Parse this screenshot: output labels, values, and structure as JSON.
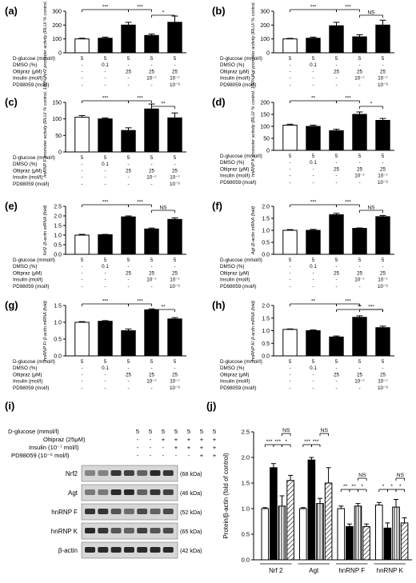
{
  "chart_data": [
    {
      "panel": "(a)",
      "type": "bar",
      "ylabel": "Nrf2 promoter activity (RLU/ % control, 100%)",
      "yticks": [
        "0",
        "100",
        "200",
        "300"
      ],
      "ylim": [
        0,
        300
      ],
      "values": [
        100,
        105,
        200,
        125,
        220
      ],
      "errors": [
        5,
        8,
        20,
        10,
        45
      ],
      "fill": [
        "white",
        "black",
        "black",
        "black",
        "black"
      ],
      "sig": [
        {
          "from": 0,
          "to": 2,
          "label": "***"
        },
        {
          "from": 2,
          "to": 3,
          "label": "***"
        },
        {
          "from": 3,
          "to": 4,
          "label": "*"
        }
      ],
      "treatments": [
        {
          "label": "D-glucose (mmol/l)",
          "values": [
            "5",
            "5",
            "5",
            "5",
            "5"
          ]
        },
        {
          "label": "DMSO (%)",
          "values": [
            "-",
            "0.1",
            "-",
            "-",
            "-"
          ]
        },
        {
          "label": "Oltipraz (μM)",
          "values": [
            "-",
            "-",
            "25",
            "25",
            "25"
          ]
        },
        {
          "label": "Insulin (mol/l)",
          "values": [
            "-",
            "-",
            "-",
            "10⁻⁷",
            "10⁻⁷"
          ]
        },
        {
          "label": "PD98059 (mol/l)",
          "values": [
            "-",
            "-",
            "-",
            "-",
            "10⁻⁶"
          ]
        }
      ]
    },
    {
      "panel": "(b)",
      "type": "bar",
      "ylabel": "Agt promoter activity (RLU/ % control, 100%)",
      "yticks": [
        "0",
        "100",
        "200",
        "300"
      ],
      "ylim": [
        0,
        300
      ],
      "values": [
        100,
        105,
        195,
        115,
        200
      ],
      "errors": [
        4,
        8,
        25,
        15,
        35
      ],
      "fill": [
        "white",
        "black",
        "black",
        "black",
        "black"
      ],
      "sig": [
        {
          "from": 0,
          "to": 2,
          "label": "***"
        },
        {
          "from": 2,
          "to": 3,
          "label": "***"
        },
        {
          "from": 3,
          "to": 4,
          "label": "NS"
        }
      ],
      "treatments": [
        {
          "label": "D-glucose (mmol/l)",
          "values": [
            "5",
            "5",
            "5",
            "5",
            "5"
          ]
        },
        {
          "label": "DMSO (%)",
          "values": [
            "-",
            "0.1",
            "-",
            "-",
            "-"
          ]
        },
        {
          "label": "Oltipraz (μM)",
          "values": [
            "-",
            "-",
            "25",
            "25",
            "25"
          ]
        },
        {
          "label": "Insulin (mol/l)",
          "values": [
            "-",
            "-",
            "-",
            "10⁻⁷",
            "10⁻⁷"
          ]
        },
        {
          "label": "PD98059 (mol/l)",
          "values": [
            "-",
            "-",
            "-",
            "-",
            "10⁻⁶"
          ]
        }
      ]
    },
    {
      "panel": "(c)",
      "type": "bar",
      "ylabel": "hnRNP F promoter activity (RLU/ % control, 100%)",
      "yticks": [
        "0",
        "50",
        "100",
        "150"
      ],
      "ylim": [
        0,
        150
      ],
      "values": [
        105,
        100,
        65,
        130,
        103
      ],
      "errors": [
        5,
        3,
        8,
        15,
        15
      ],
      "fill": [
        "white",
        "black",
        "black",
        "black",
        "black"
      ],
      "sig": [
        {
          "from": 0,
          "to": 2,
          "label": "***"
        },
        {
          "from": 2,
          "to": 3,
          "label": "***"
        },
        {
          "from": 3,
          "to": 4,
          "label": "**"
        }
      ],
      "treatments": [
        {
          "label": "D-glucose (mmol/l)",
          "values": [
            "5",
            "5",
            "5",
            "5",
            "5"
          ]
        },
        {
          "label": "DMSO (%)",
          "values": [
            "-",
            "0.1",
            "-",
            "-",
            "-"
          ]
        },
        {
          "label": "Oltipraz (μM)",
          "values": [
            "-",
            "-",
            "25",
            "25",
            "25"
          ]
        },
        {
          "label": "Insulin (mol/l)",
          "values": [
            "-",
            "-",
            "-",
            "10⁻⁷",
            "10⁻⁷"
          ]
        },
        {
          "label": "PD98059 (mol/l)",
          "values": [
            "-",
            "-",
            "-",
            "-",
            "10⁻⁶"
          ]
        }
      ]
    },
    {
      "panel": "(d)",
      "type": "bar",
      "ylabel": "hnRNP K promoter activity (RLU/ % control, 100%)",
      "yticks": [
        "0",
        "50",
        "100",
        "150",
        "200"
      ],
      "ylim": [
        0,
        200
      ],
      "values": [
        105,
        100,
        82,
        150,
        125
      ],
      "errors": [
        4,
        5,
        6,
        10,
        8
      ],
      "fill": [
        "white",
        "black",
        "black",
        "black",
        "black"
      ],
      "sig": [
        {
          "from": 0,
          "to": 2,
          "label": "**"
        },
        {
          "from": 2,
          "to": 3,
          "label": "***"
        },
        {
          "from": 3,
          "to": 4,
          "label": "*"
        }
      ],
      "treatments": [
        {
          "label": "D-glucose (mmol/l)",
          "values": [
            "5",
            "5",
            "5",
            "5",
            "5"
          ]
        },
        {
          "label": "DMSO (%)",
          "values": [
            "-",
            "0.1",
            "-",
            "-",
            "-"
          ]
        },
        {
          "label": "Oltipraz (μM)",
          "values": [
            "-",
            "-",
            "25",
            "25",
            "25"
          ]
        },
        {
          "label": "Insulin (mol/l)",
          "values": [
            "-",
            "-",
            "-",
            "10⁻⁷",
            "10⁻⁷"
          ]
        },
        {
          "label": "PD98059 (mol/l)",
          "values": [
            "-",
            "-",
            "-",
            "-",
            "10⁻⁶"
          ]
        }
      ]
    },
    {
      "panel": "(e)",
      "type": "bar",
      "ylabel": "Nrf2 /β-actin mRNA (fold)",
      "yticks": [
        "0.0",
        "0.5",
        "1.0",
        "1.5",
        "2.0",
        "2.5"
      ],
      "ylim": [
        0,
        2.5
      ],
      "values": [
        1.0,
        1.02,
        1.95,
        1.32,
        1.82
      ],
      "errors": [
        0.04,
        0.02,
        0.05,
        0.05,
        0.08
      ],
      "fill": [
        "white",
        "black",
        "black",
        "black",
        "black"
      ],
      "sig": [
        {
          "from": 0,
          "to": 2,
          "label": "***"
        },
        {
          "from": 2,
          "to": 3,
          "label": "***"
        },
        {
          "from": 3,
          "to": 4,
          "label": "NS"
        }
      ],
      "treatments": [
        {
          "label": "D-glucose (mmol/l)",
          "values": [
            "5",
            "5",
            "5",
            "5",
            "5"
          ]
        },
        {
          "label": "DMSO (%)",
          "values": [
            "-",
            "0.1",
            "-",
            "-",
            "-"
          ]
        },
        {
          "label": "Oltipraz (μM)",
          "values": [
            "-",
            "-",
            "25",
            "25",
            "25"
          ]
        },
        {
          "label": "Insulin (mol/l)",
          "values": [
            "-",
            "-",
            "-",
            "10⁻⁷",
            "10⁻⁷"
          ]
        },
        {
          "label": "PD98059 (mol/l)",
          "values": [
            "-",
            "-",
            "-",
            "-",
            "10⁻⁶"
          ]
        }
      ]
    },
    {
      "panel": "(f)",
      "type": "bar",
      "ylabel": "Agt /β-actin mRNA (fold)",
      "yticks": [
        "0.0",
        "0.5",
        "1.0",
        "1.5",
        "2.0"
      ],
      "ylim": [
        0,
        2.0
      ],
      "values": [
        1.0,
        1.0,
        1.65,
        1.08,
        1.57
      ],
      "errors": [
        0.03,
        0.04,
        0.06,
        0.02,
        0.05
      ],
      "fill": [
        "white",
        "black",
        "black",
        "black",
        "black"
      ],
      "sig": [
        {
          "from": 0,
          "to": 2,
          "label": "***"
        },
        {
          "from": 2,
          "to": 3,
          "label": "***"
        },
        {
          "from": 3,
          "to": 4,
          "label": "NS"
        }
      ],
      "treatments": [
        {
          "label": "D-glucose (mmol/l)",
          "values": [
            "5",
            "5",
            "5",
            "5",
            "5"
          ]
        },
        {
          "label": "DMSO (%)",
          "values": [
            "-",
            "0.1",
            "-",
            "-",
            "-"
          ]
        },
        {
          "label": "Oltipraz (μM)",
          "values": [
            "-",
            "-",
            "25",
            "25",
            "25"
          ]
        },
        {
          "label": "Insulin (mol/l)",
          "values": [
            "-",
            "-",
            "-",
            "10⁻⁷",
            "10⁻⁷"
          ]
        },
        {
          "label": "PD98059 (mol/l)",
          "values": [
            "-",
            "-",
            "-",
            "-",
            "10⁻⁶"
          ]
        }
      ]
    },
    {
      "panel": "(g)",
      "type": "bar",
      "ylabel": "hnRNP F/ β-actin mRNA (fold)",
      "yticks": [
        "0.0",
        "0.5",
        "1.0",
        "1.5"
      ],
      "ylim": [
        0,
        1.5
      ],
      "values": [
        1.0,
        1.03,
        0.75,
        1.37,
        1.1
      ],
      "errors": [
        0.02,
        0.02,
        0.05,
        0.03,
        0.04
      ],
      "fill": [
        "white",
        "black",
        "black",
        "black",
        "black"
      ],
      "sig": [
        {
          "from": 0,
          "to": 2,
          "label": "***"
        },
        {
          "from": 2,
          "to": 3,
          "label": "***"
        },
        {
          "from": 3,
          "to": 4,
          "label": "**"
        }
      ],
      "treatments": [
        {
          "label": "D-glucose (mmol/l)",
          "values": [
            "5",
            "5",
            "5",
            "5",
            "5"
          ]
        },
        {
          "label": "DMSO (%)",
          "values": [
            "-",
            "0.1",
            "-",
            "-",
            "-"
          ]
        },
        {
          "label": "Oltipraz (μM)",
          "values": [
            "-",
            "-",
            "25",
            "25",
            "25"
          ]
        },
        {
          "label": "Insulin (mol/l)",
          "values": [
            "-",
            "-",
            "-",
            "10⁻⁷",
            "10⁻⁷"
          ]
        },
        {
          "label": "PD98059 (mol/l)",
          "values": [
            "-",
            "-",
            "-",
            "-",
            "10⁻⁶"
          ]
        }
      ]
    },
    {
      "panel": "(h)",
      "type": "bar",
      "ylabel": "hnRNP K/ β-actin mRNA (fold)",
      "yticks": [
        "0.0",
        "0.5",
        "1.0",
        "1.5",
        "2.0"
      ],
      "ylim": [
        0,
        2.0
      ],
      "values": [
        1.05,
        1.0,
        0.75,
        1.53,
        1.12
      ],
      "errors": [
        0.02,
        0.03,
        0.04,
        0.06,
        0.06
      ],
      "fill": [
        "white",
        "black",
        "black",
        "black",
        "black"
      ],
      "sig": [
        {
          "from": 0,
          "to": 2,
          "label": "**"
        },
        {
          "from": 2,
          "to": 3,
          "label": "***"
        },
        {
          "from": 3,
          "to": 4,
          "label": "***"
        },
        {
          "from": 2,
          "to": 4,
          "label": "**"
        }
      ],
      "treatments": [
        {
          "label": "D-glucose (mmol/l)",
          "values": [
            "5",
            "5",
            "5",
            "5",
            "5"
          ]
        },
        {
          "label": "DMSO (%)",
          "values": [
            "-",
            "0.1",
            "-",
            "-",
            "-"
          ]
        },
        {
          "label": "Oltipraz (μM)",
          "values": [
            "-",
            "-",
            "25",
            "25",
            "25"
          ]
        },
        {
          "label": "Insulin (mol/l)",
          "values": [
            "-",
            "-",
            "-",
            "10⁻⁷",
            "10⁻⁷"
          ]
        },
        {
          "label": "PD98059 (mol/l)",
          "values": [
            "-",
            "-",
            "-",
            "-",
            "10⁻⁶"
          ]
        }
      ]
    },
    {
      "panel": "(i)",
      "type": "table",
      "rows": [
        {
          "label": "D-glucose (mmol/l)",
          "values": [
            "5",
            "5",
            "5",
            "5",
            "5",
            "5",
            "5"
          ]
        },
        {
          "label": "Oltipraz (25μM)",
          "values": [
            "-",
            "-",
            "+",
            "+",
            "+",
            "+",
            "+"
          ]
        },
        {
          "label": "Insulin  (10⁻⁷ mol/l)",
          "values": [
            "-",
            "-",
            "-",
            "+",
            "+",
            "+",
            "+"
          ]
        },
        {
          "label": "PD98059 (10⁻⁶ mol/l)",
          "values": [
            "-",
            "-",
            "-",
            "-",
            "-",
            "+",
            "+"
          ]
        }
      ],
      "blots": [
        {
          "name": "Nrf2",
          "size": "(68 kDa)"
        },
        {
          "name": "Agt",
          "size": "(46 kDa)"
        },
        {
          "name": "hnRNP F",
          "size": "(52 kDa)"
        },
        {
          "name": "hnRNP K",
          "size": "(65 kDa)"
        },
        {
          "name": "β-actin",
          "size": "(42 kDa)"
        }
      ]
    },
    {
      "panel": "(j)",
      "type": "bar",
      "ylabel": "Protein/β-actin (fold of control)",
      "yticks": [
        "0.0",
        "0.5",
        "1.0",
        "1.5",
        "2.0",
        "2.5"
      ],
      "ylim": [
        0,
        2.5
      ],
      "groups": [
        "Nrf 2",
        "Agt",
        "hnRNP F",
        "hnRNP K"
      ],
      "values": [
        [
          1.0,
          1.8,
          1.05,
          1.55
        ],
        [
          1.0,
          1.95,
          1.1,
          1.5
        ],
        [
          1.0,
          0.65,
          1.05,
          0.65
        ],
        [
          1.07,
          0.62,
          1.03,
          0.72
        ]
      ],
      "errors": [
        [
          0.02,
          0.08,
          0.2,
          0.1
        ],
        [
          0.02,
          0.05,
          0.1,
          0.3
        ],
        [
          0.05,
          0.05,
          0.05,
          0.05
        ],
        [
          0.05,
          0.1,
          0.15,
          0.1
        ]
      ],
      "fill": [
        "white",
        "black",
        "hatch-v",
        "hatch-d"
      ],
      "sig": [
        [
          {
            "from": 0,
            "to": 1,
            "label": "***"
          },
          {
            "from": 1,
            "to": 2,
            "label": "***"
          },
          {
            "from": 2,
            "to": 3,
            "label": "*"
          },
          {
            "from": 2,
            "to": 3,
            "label": "NS",
            "level": 2
          }
        ],
        [
          {
            "from": 0,
            "to": 1,
            "label": "***"
          },
          {
            "from": 1,
            "to": 2,
            "label": "***"
          },
          {
            "from": 2,
            "to": 3,
            "label": "NS",
            "level": 2
          }
        ],
        [
          {
            "from": 0,
            "to": 1,
            "label": "**"
          },
          {
            "from": 1,
            "to": 2,
            "label": "**"
          },
          {
            "from": 2,
            "to": 3,
            "label": "*"
          },
          {
            "from": 2,
            "to": 3,
            "label": "NS",
            "level": 2
          }
        ],
        [
          {
            "from": 0,
            "to": 1,
            "label": "*"
          },
          {
            "from": 1,
            "to": 2,
            "label": "*"
          },
          {
            "from": 2,
            "to": 3,
            "label": "*"
          },
          {
            "from": 2,
            "to": 3,
            "label": "NS",
            "level": 2
          }
        ]
      ]
    }
  ]
}
